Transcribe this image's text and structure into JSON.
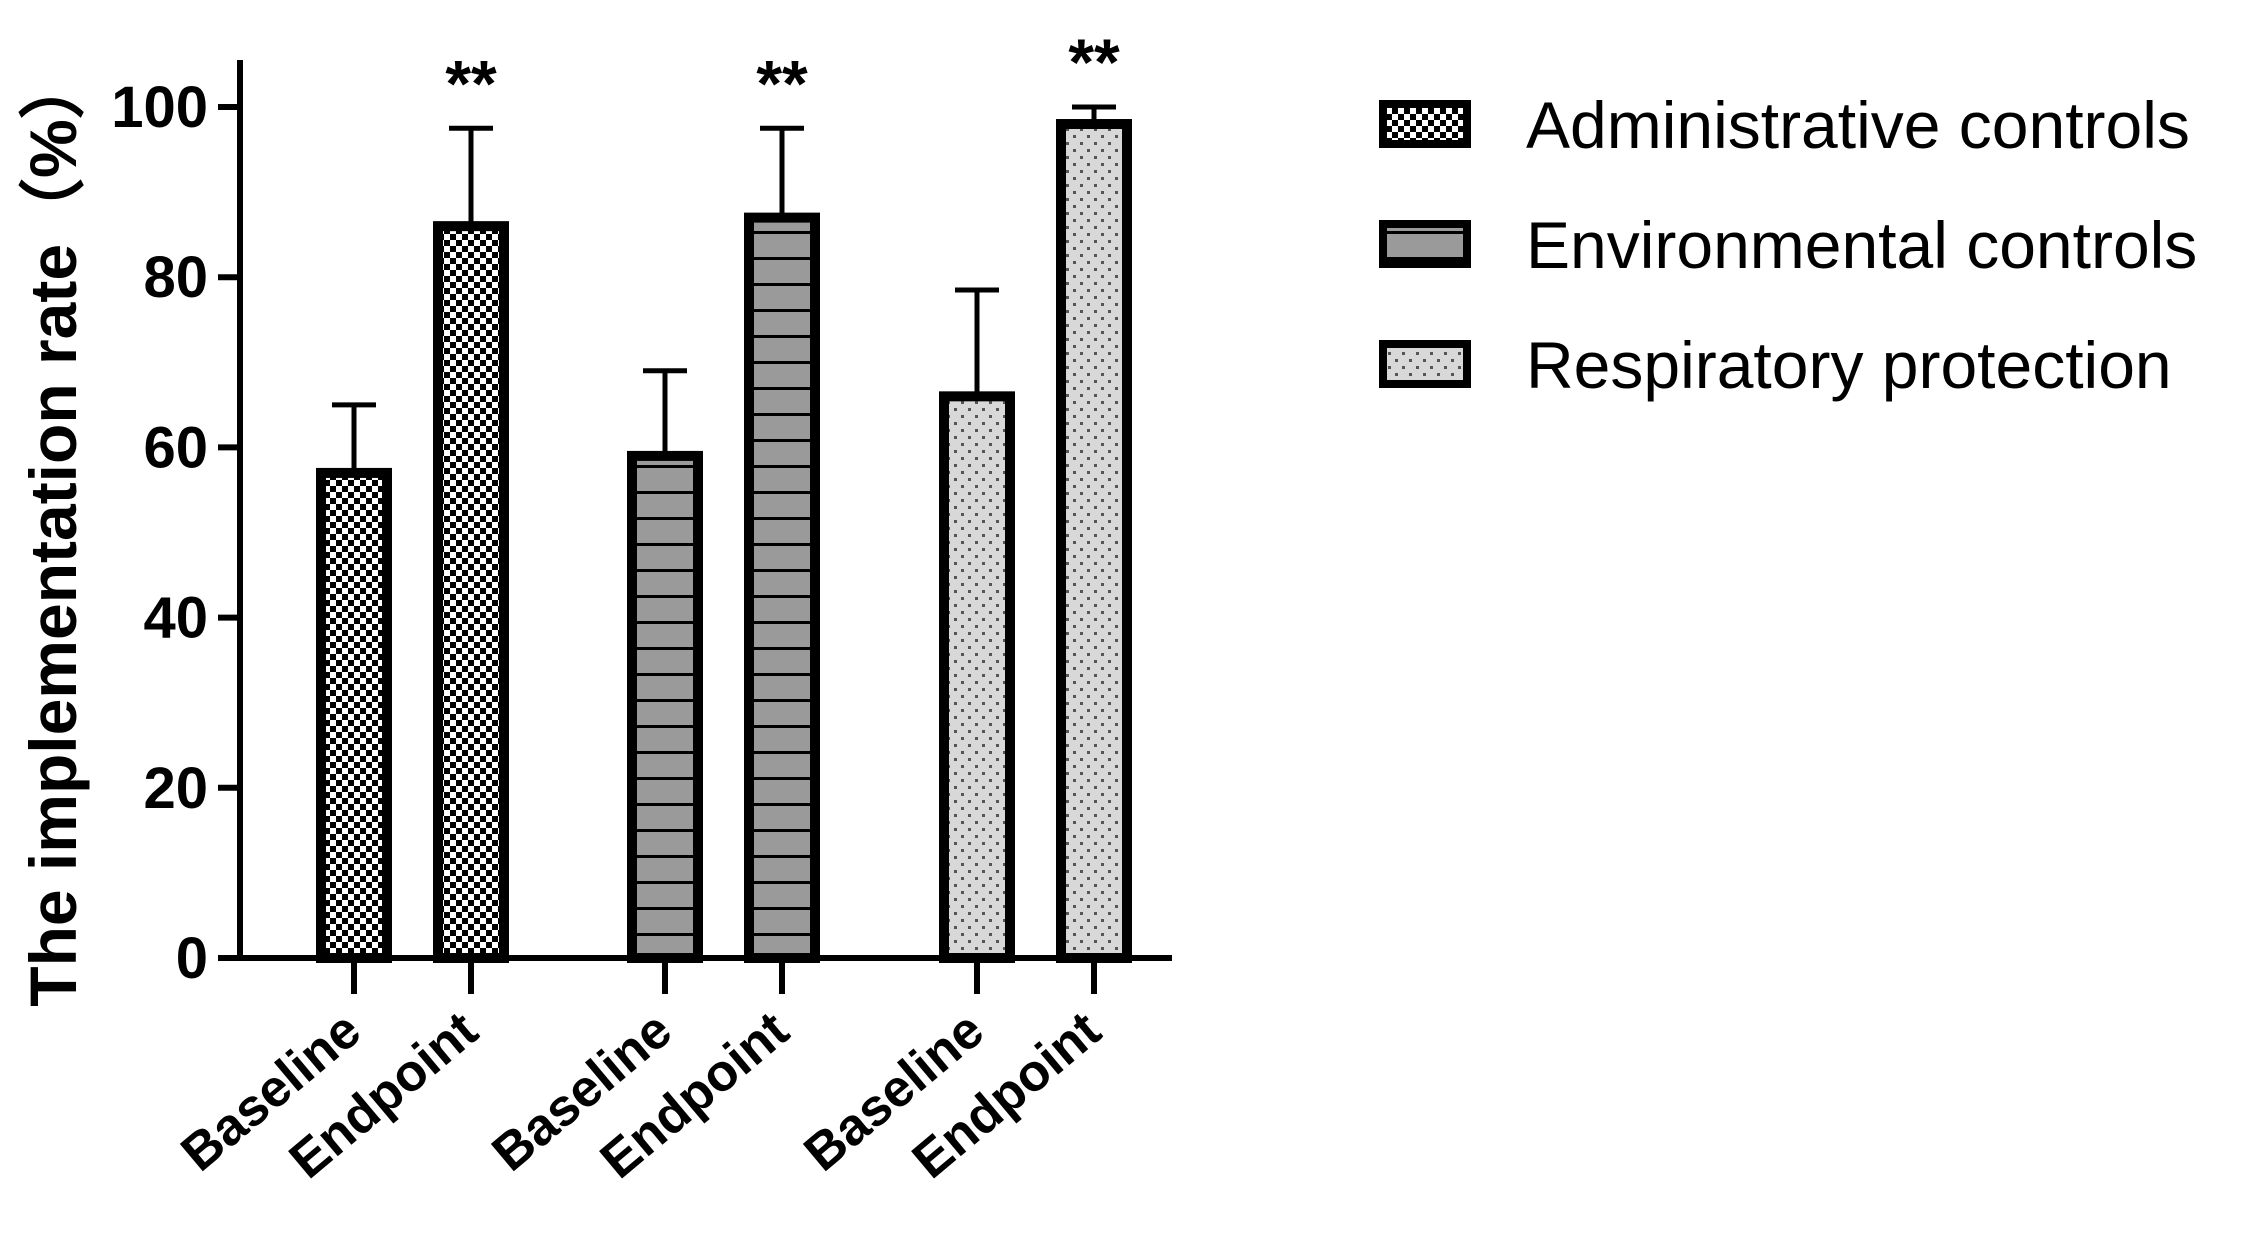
{
  "chart_data": {
    "type": "bar",
    "title": "",
    "xlabel": "",
    "ylabel": "The implementation rate（%）",
    "ylim": [
      0,
      100
    ],
    "yticks": [
      "0",
      "20",
      "40",
      "60",
      "80",
      "100"
    ],
    "legend_position": "right",
    "groups": [
      {
        "name": "Administrative controls",
        "pattern": "checker",
        "bars": [
          {
            "category": "Baseline",
            "value": 57,
            "error": 8,
            "significance": ""
          },
          {
            "category": "Endpoint",
            "value": 86,
            "error": 11.5,
            "significance": "**"
          }
        ]
      },
      {
        "name": "Environmental controls",
        "pattern": "stripes",
        "bars": [
          {
            "category": "Baseline",
            "value": 59,
            "error": 10,
            "significance": ""
          },
          {
            "category": "Endpoint",
            "value": 87,
            "error": 10.5,
            "significance": "**"
          }
        ]
      },
      {
        "name": "Respiratory protection",
        "pattern": "dots",
        "bars": [
          {
            "category": "Baseline",
            "value": 66,
            "error": 12.5,
            "significance": ""
          },
          {
            "category": "Endpoint",
            "value": 98,
            "error": 2,
            "significance": "**"
          }
        ]
      }
    ],
    "colors": {
      "checker": "#000000",
      "stripes": "#9a9a9a",
      "dots": "#d8d8d8",
      "outline": "#000000"
    }
  }
}
